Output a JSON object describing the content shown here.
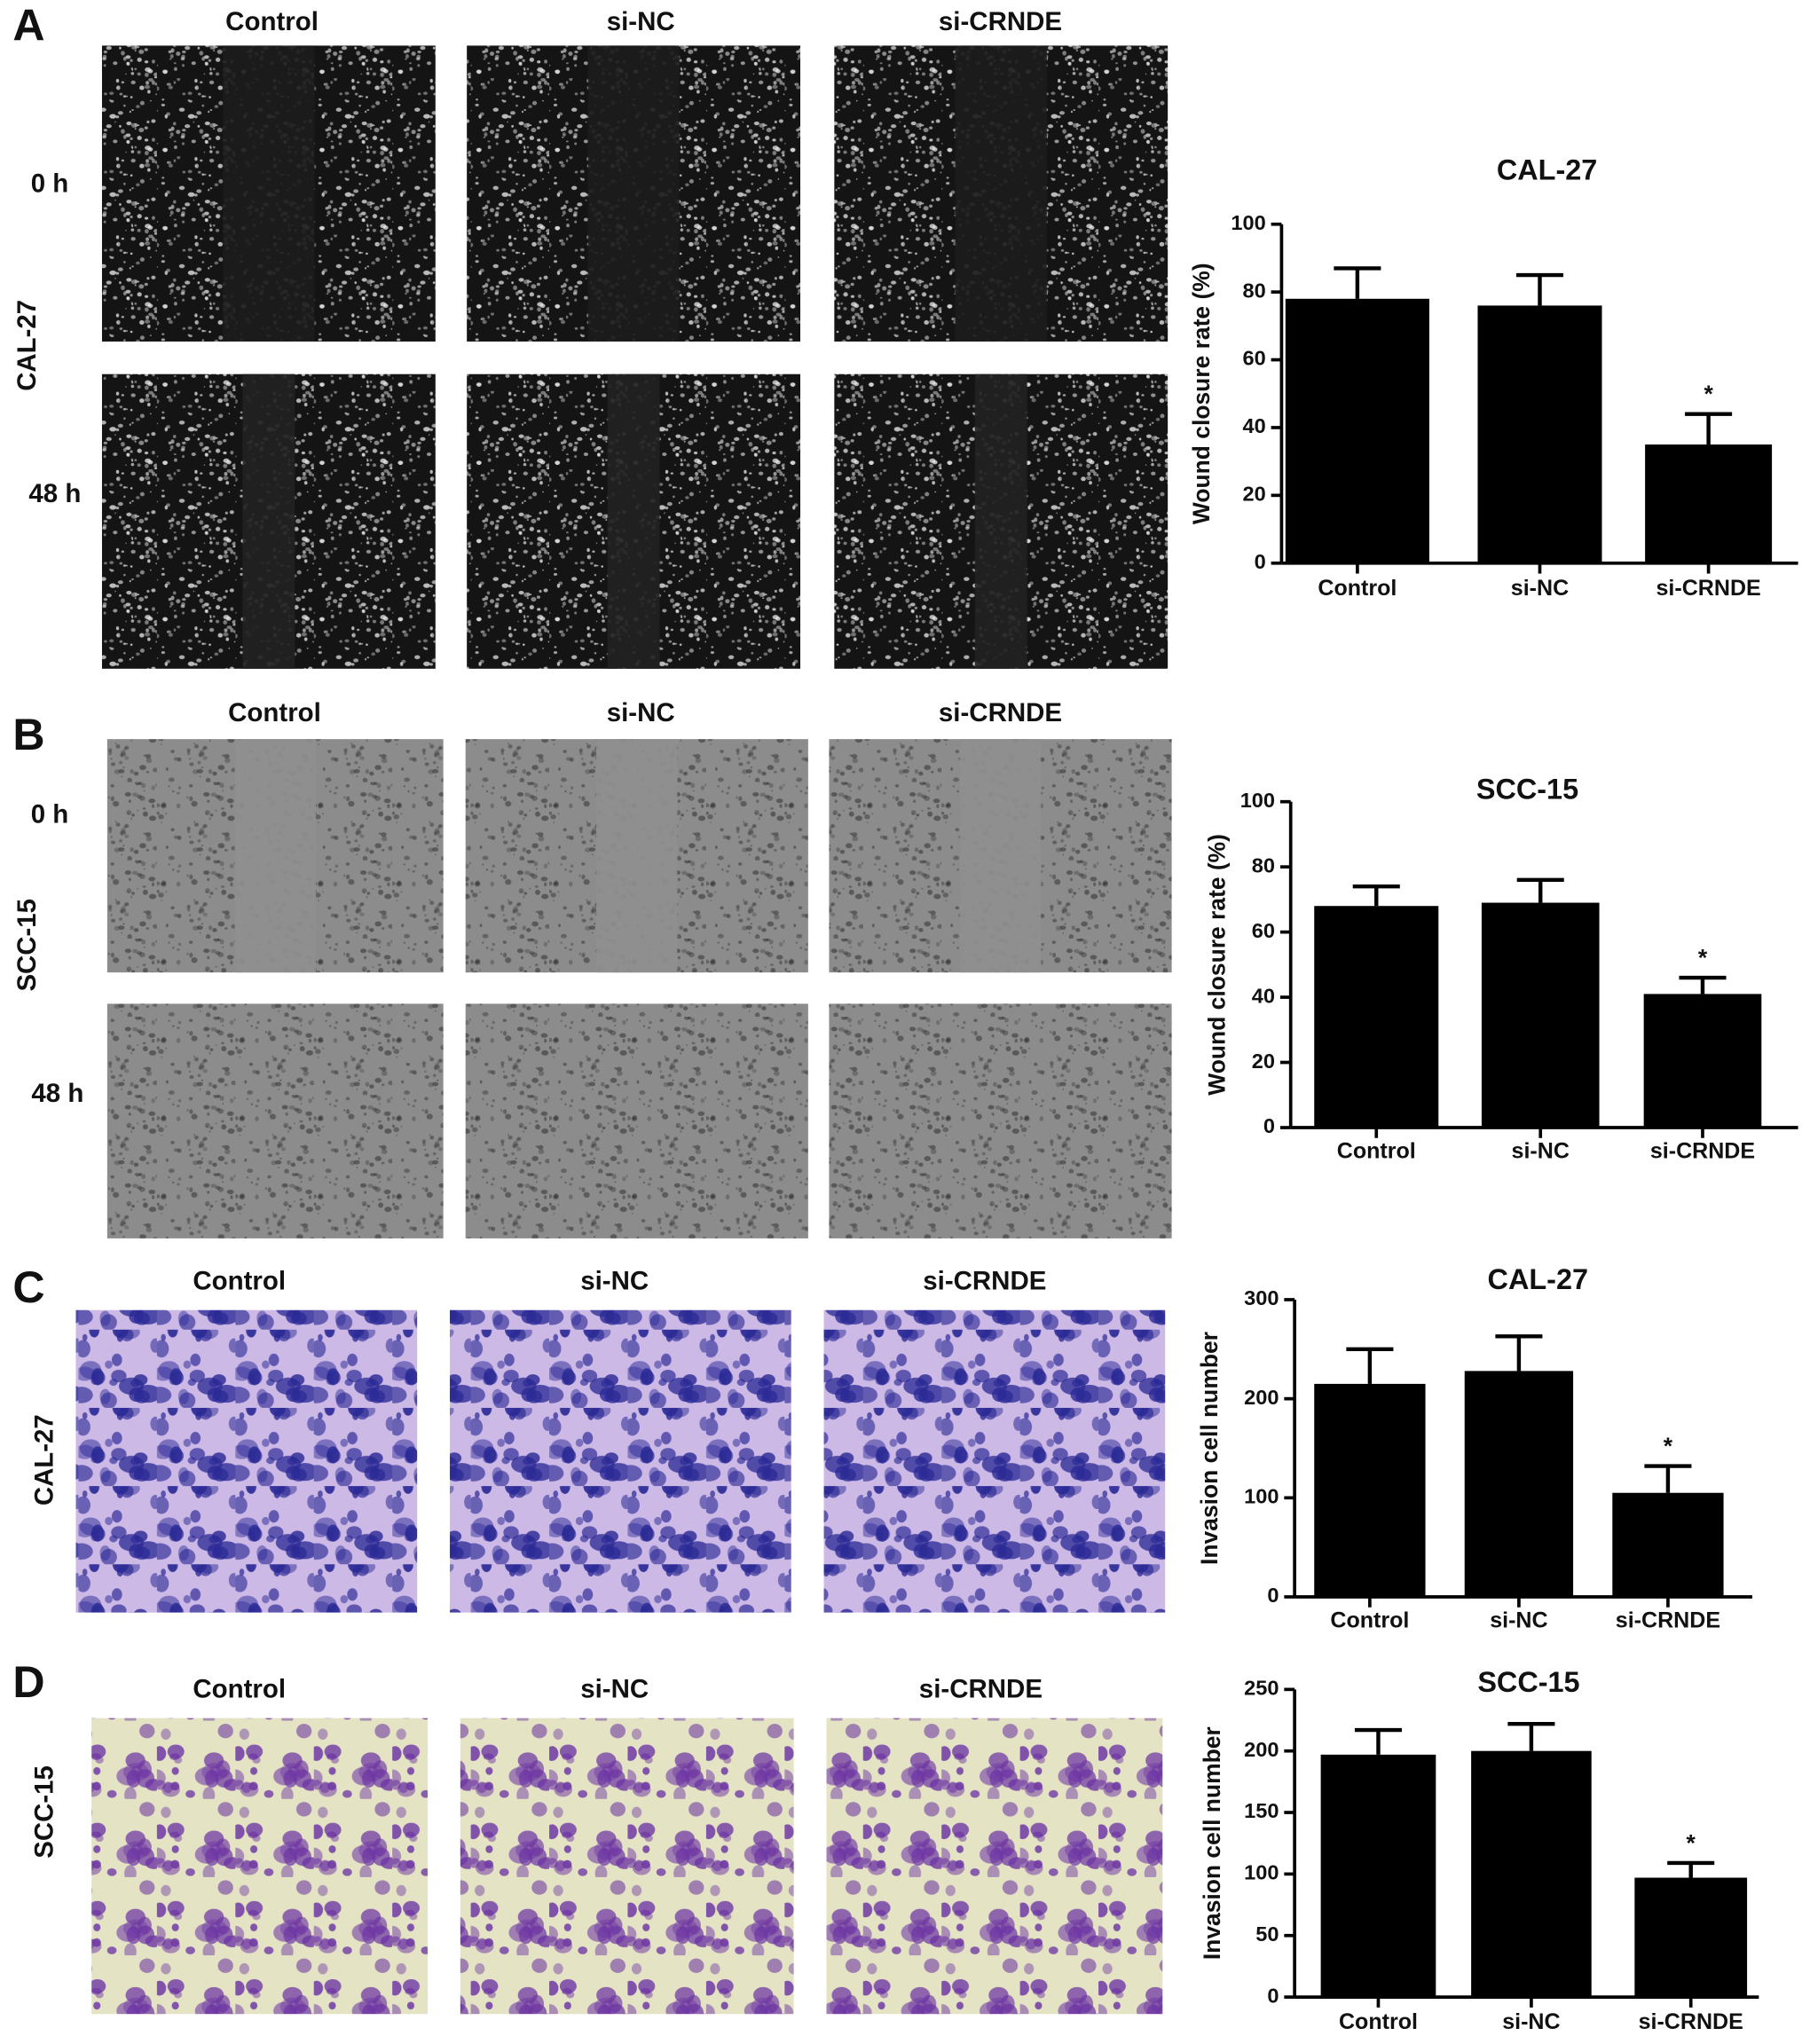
{
  "panels": [
    {
      "letter": "A",
      "cell_line": "CAL-27",
      "columns": [
        "Control",
        "si-NC",
        "si-CRNDE"
      ],
      "rows": [
        "0 h",
        "48 h"
      ]
    },
    {
      "letter": "B",
      "cell_line": "SCC-15",
      "columns": [
        "Control",
        "si-NC",
        "si-CRNDE"
      ],
      "rows": [
        "0 h",
        "48 h"
      ]
    },
    {
      "letter": "C",
      "cell_line": "CAL-27",
      "columns": [
        "Control",
        "si-NC",
        "si-CRNDE"
      ]
    },
    {
      "letter": "D",
      "cell_line": "SCC-15",
      "columns": [
        "Control",
        "si-NC",
        "si-CRNDE"
      ]
    }
  ],
  "chart_data": [
    {
      "type": "bar",
      "title": "CAL-27",
      "ylabel": "Wound closure rate (%)",
      "categories": [
        "Control",
        "si-NC",
        "si-CRNDE"
      ],
      "values": [
        78,
        76,
        35
      ],
      "errors": [
        9,
        9,
        9
      ],
      "markers": [
        null,
        null,
        "*"
      ],
      "color": "#000000",
      "ylim": [
        0,
        100
      ],
      "yticks": [
        0,
        20,
        40,
        60,
        80,
        100
      ]
    },
    {
      "type": "bar",
      "title": "SCC-15",
      "ylabel": "Wound closure rate (%)",
      "categories": [
        "Control",
        "si-NC",
        "si-CRNDE"
      ],
      "values": [
        68,
        69,
        41
      ],
      "errors": [
        6,
        7,
        5
      ],
      "markers": [
        null,
        null,
        "*"
      ],
      "color": "#000000",
      "ylim": [
        0,
        100
      ],
      "yticks": [
        0,
        20,
        40,
        60,
        80,
        100
      ]
    },
    {
      "type": "bar",
      "title": "CAL-27",
      "ylabel": "Invasion cell number",
      "categories": [
        "Control",
        "si-NC",
        "si-CRNDE"
      ],
      "values": [
        215,
        228,
        105
      ],
      "errors": [
        35,
        35,
        27
      ],
      "markers": [
        null,
        null,
        "*"
      ],
      "color": "#000000",
      "ylim": [
        0,
        300
      ],
      "yticks": [
        0,
        100,
        200,
        300
      ]
    },
    {
      "type": "bar",
      "title": "SCC-15",
      "ylabel": "Invasion cell number",
      "categories": [
        "Control",
        "si-NC",
        "si-CRNDE"
      ],
      "values": [
        197,
        200,
        97
      ],
      "errors": [
        20,
        22,
        12
      ],
      "markers": [
        null,
        null,
        "*"
      ],
      "color": "#000000",
      "ylim": [
        0,
        250
      ],
      "yticks": [
        0,
        50,
        100,
        150,
        200,
        250
      ]
    }
  ]
}
